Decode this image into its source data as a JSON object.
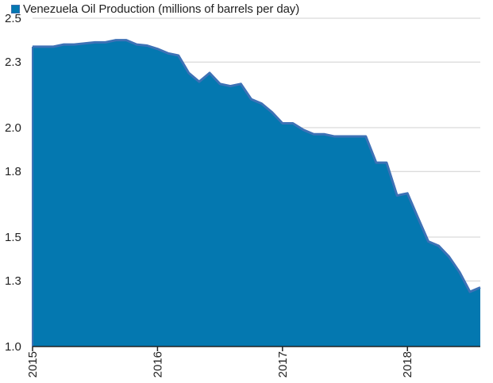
{
  "colors": {
    "area_fill": "#0478b0",
    "area_line": "#3e72b6",
    "grid": "#d0d0d0",
    "axis": "#222222"
  },
  "chart_data": {
    "type": "area",
    "title": "",
    "xlabel": "",
    "ylabel": "",
    "legend": {
      "position": "top-left",
      "entries": [
        "Venezuela Oil Production (millions of barrels per day)"
      ]
    },
    "grid": true,
    "xlim": [
      2015.0,
      2018.583
    ],
    "ylim": [
      1.0,
      2.5
    ],
    "yticks": [
      1.0,
      1.3,
      1.5,
      1.8,
      2.0,
      2.3,
      2.5
    ],
    "ytick_labels": [
      "1.0",
      "1.3",
      "1.5",
      "1.8",
      "2.0",
      "2.3",
      "2.5"
    ],
    "xticks": [
      2015,
      2016,
      2017,
      2018
    ],
    "xtick_labels": [
      "2015",
      "2016",
      "2017",
      "2018"
    ],
    "series": [
      {
        "name": "Venezuela Oil Production (millions of barrels per day)",
        "x": [
          2015.0,
          2015.083,
          2015.167,
          2015.25,
          2015.333,
          2015.417,
          2015.5,
          2015.583,
          2015.667,
          2015.75,
          2015.833,
          2015.917,
          2016.0,
          2016.083,
          2016.167,
          2016.25,
          2016.333,
          2016.417,
          2016.5,
          2016.583,
          2016.667,
          2016.75,
          2016.833,
          2016.917,
          2017.0,
          2017.083,
          2017.167,
          2017.25,
          2017.333,
          2017.417,
          2017.5,
          2017.583,
          2017.667,
          2017.75,
          2017.833,
          2017.917,
          2018.0,
          2018.083,
          2018.167,
          2018.25,
          2018.333,
          2018.417,
          2018.5,
          2018.583
        ],
        "values": [
          2.37,
          2.37,
          2.37,
          2.38,
          2.38,
          2.385,
          2.39,
          2.39,
          2.4,
          2.4,
          2.38,
          2.375,
          2.36,
          2.34,
          2.33,
          2.25,
          2.21,
          2.25,
          2.2,
          2.19,
          2.2,
          2.13,
          2.11,
          2.07,
          2.02,
          2.02,
          1.99,
          1.97,
          1.97,
          1.96,
          1.96,
          1.96,
          1.96,
          1.84,
          1.84,
          1.69,
          1.7,
          1.59,
          1.48,
          1.46,
          1.41,
          1.34,
          1.25,
          1.27
        ]
      }
    ]
  }
}
